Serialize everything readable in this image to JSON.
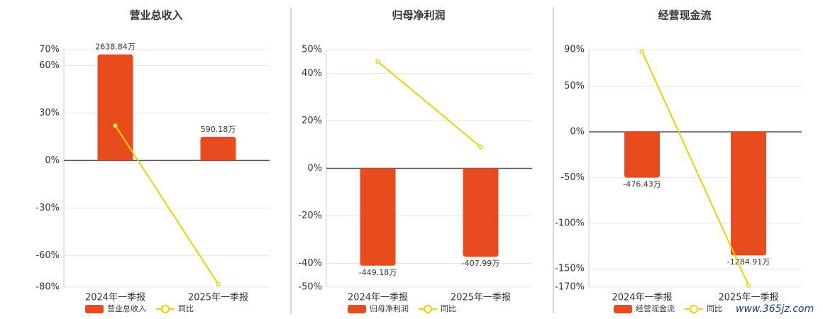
{
  "chart_data": [
    {
      "type": "bar",
      "title": "营业总收入",
      "categories": [
        "2024年一季报",
        "2025年一季报"
      ],
      "series": [
        {
          "name": "营业总收入",
          "type": "bar",
          "axis": "y2",
          "color": "#e84c1c",
          "values": [
            2638.84,
            590.18
          ],
          "value_labels": [
            "2638.84万",
            "590.18万"
          ]
        },
        {
          "name": "同比",
          "type": "line",
          "color": "#f0d000",
          "values": [
            22,
            -78
          ]
        }
      ],
      "ylim": [
        -80,
        70
      ],
      "y2lim": [
        -3151,
        2757
      ],
      "yticks": [
        {
          "value": 70,
          "label": "70%"
        },
        {
          "value": 60,
          "label": "60%"
        },
        {
          "value": 30,
          "label": "30%"
        },
        {
          "value": 0,
          "label": "0%"
        },
        {
          "value": -30,
          "label": "-30%"
        },
        {
          "value": -60,
          "label": "-60%"
        },
        {
          "value": -80,
          "label": "-80%"
        }
      ],
      "grid": true
    },
    {
      "type": "bar",
      "title": "归母净利润",
      "categories": [
        "2024年一季报",
        "2025年一季报"
      ],
      "series": [
        {
          "name": "归母净利润",
          "type": "bar",
          "axis": "y2",
          "color": "#e84c1c",
          "values": [
            -449.18,
            -407.99
          ],
          "value_labels": [
            "-449.18万",
            "-407.99万"
          ]
        },
        {
          "name": "同比",
          "type": "line",
          "color": "#f0d000",
          "values": [
            45,
            9
          ]
        }
      ],
      "ylim": [
        -50,
        50
      ],
      "y2lim": [
        -548,
        548
      ],
      "yticks": [
        {
          "value": 50,
          "label": "50%"
        },
        {
          "value": 40,
          "label": "40%"
        },
        {
          "value": 20,
          "label": "20%"
        },
        {
          "value": 0,
          "label": "0%"
        },
        {
          "value": -20,
          "label": "-20%"
        },
        {
          "value": -40,
          "label": "-40%"
        },
        {
          "value": -50,
          "label": "-50%"
        }
      ],
      "grid": true
    },
    {
      "type": "bar",
      "title": "经营现金流",
      "categories": [
        "2024年一季报",
        "2025年一季报"
      ],
      "series": [
        {
          "name": "经营现金流",
          "type": "bar",
          "axis": "y2",
          "color": "#e84c1c",
          "values": [
            -476.43,
            -1284.91
          ],
          "value_labels": [
            "-476.43万",
            "-1284.91万"
          ]
        },
        {
          "name": "同比",
          "type": "line",
          "color": "#f0d000",
          "values": [
            88,
            -168
          ]
        }
      ],
      "ylim": [
        -170,
        90
      ],
      "y2lim": [
        -1615,
        855
      ],
      "yticks": [
        {
          "value": 90,
          "label": "90%"
        },
        {
          "value": 50,
          "label": "50%"
        },
        {
          "value": 0,
          "label": "0%"
        },
        {
          "value": -50,
          "label": "-50%"
        },
        {
          "value": -100,
          "label": "-100%"
        },
        {
          "value": -150,
          "label": "-150%"
        },
        {
          "value": -170,
          "label": "-170%"
        }
      ],
      "grid": true
    }
  ],
  "watermark": "www.365jz.com"
}
